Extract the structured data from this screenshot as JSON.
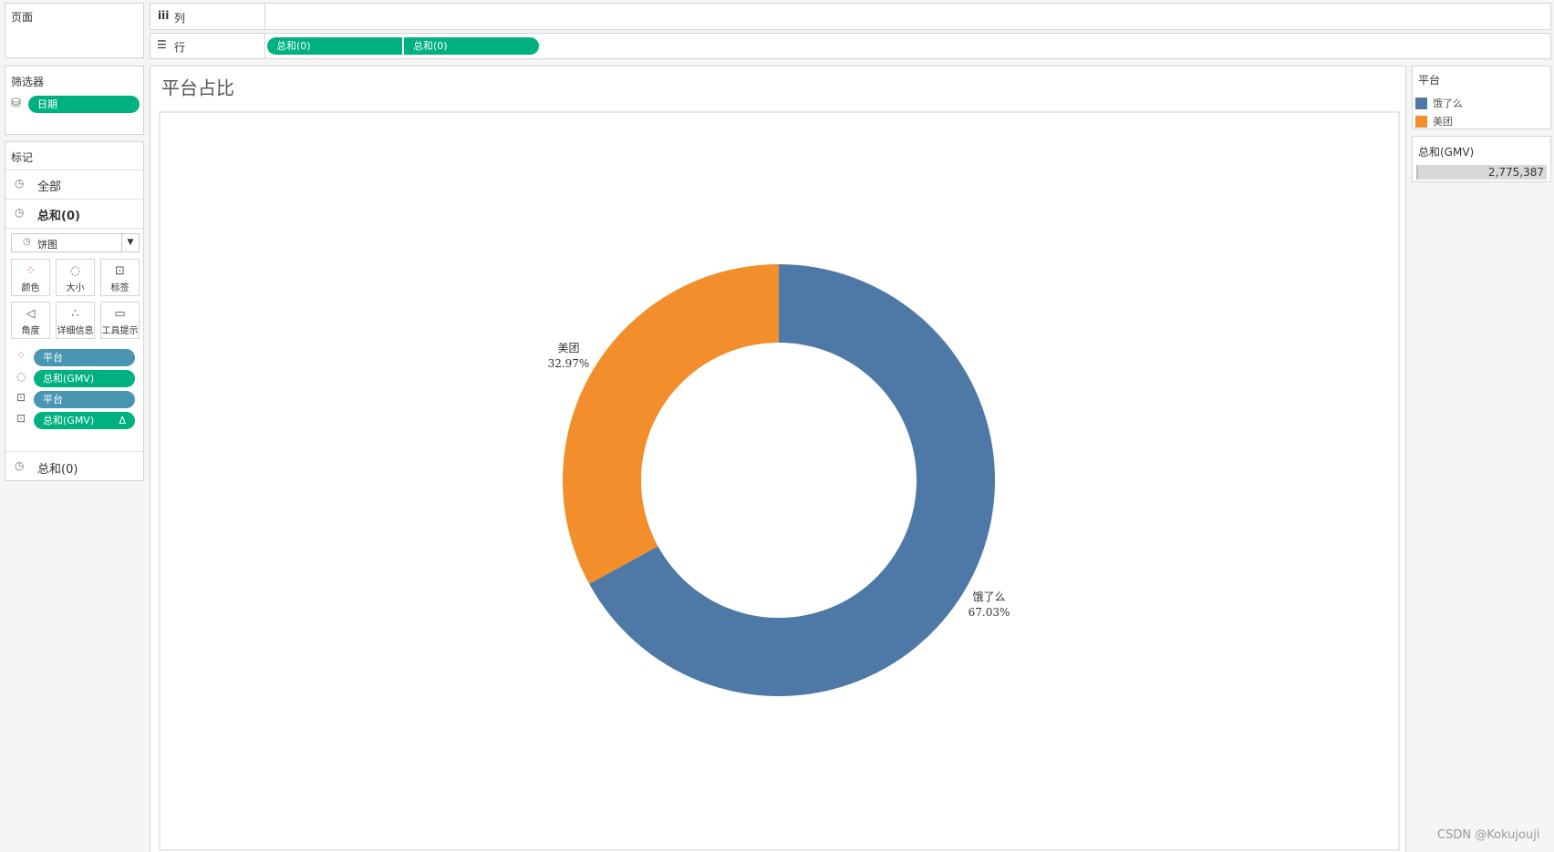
{
  "shelves": {
    "pages": "页面",
    "columns": "列",
    "rows": "行",
    "row_pills": [
      "总和(0)",
      "总和(0)"
    ]
  },
  "filters": {
    "title": "筛选器",
    "pills": [
      "日期"
    ]
  },
  "marks": {
    "title": "标记",
    "all": "全部",
    "current": "总和(0)",
    "mark_type": "饼图",
    "buttons": [
      "颜色",
      "大小",
      "标签",
      "角度",
      "详细信息",
      "工具提示"
    ],
    "fields": [
      "平台",
      "总和(GMV)",
      "平台",
      "总和(GMV)"
    ],
    "delta": "Δ",
    "bottom": "总和(0)"
  },
  "legend": {
    "title": "平台"
  },
  "size_legend": {
    "title": "总和(GMV)",
    "value": "2,775,387"
  },
  "watermark": "CSDN @Kokujouji",
  "chart_data": {
    "type": "donut",
    "title": "平台占比",
    "categories": [
      "饿了么",
      "美团"
    ],
    "values": [
      67.03,
      32.97
    ],
    "value_labels": [
      "67.03%",
      "32.97%"
    ],
    "colors": [
      "#4e79a7",
      "#f28e2b"
    ]
  }
}
